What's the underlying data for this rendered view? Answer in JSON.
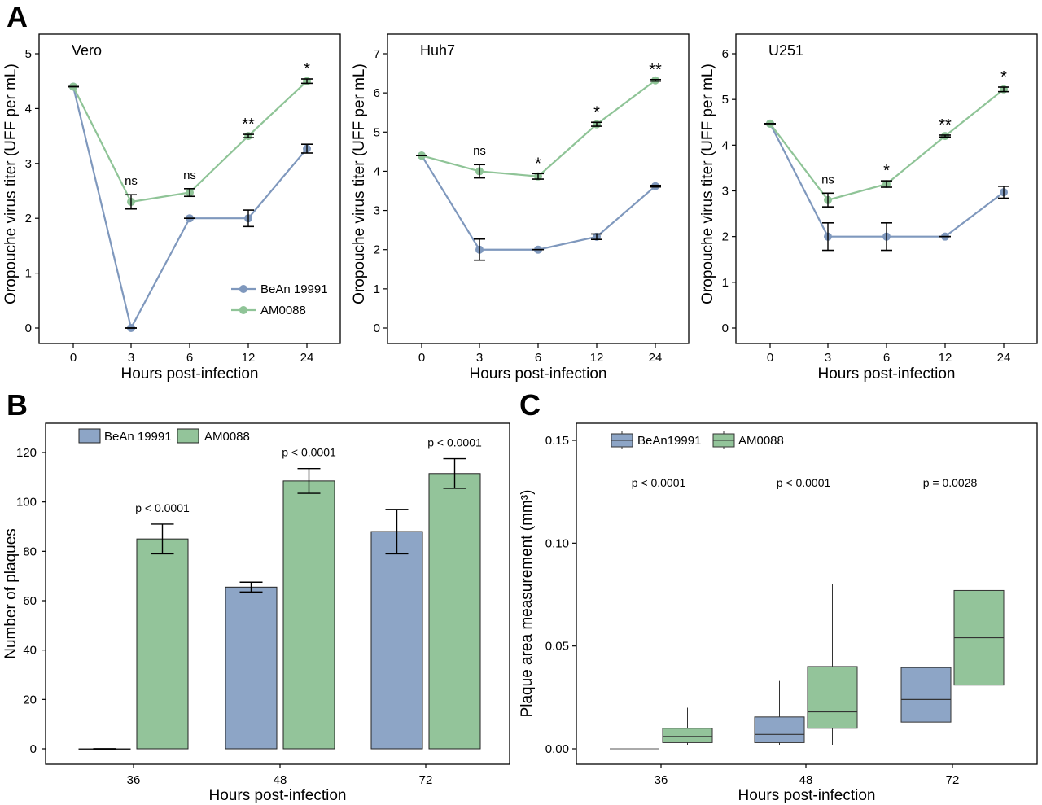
{
  "colors": {
    "blue": "#8DA5C6",
    "green": "#93C49A",
    "blue_line": "#7F98BD",
    "green_line": "#8FC497",
    "stroke": "#000000"
  },
  "panels": {
    "A": "A",
    "B": "B",
    "C": "C"
  },
  "chart_data": [
    {
      "id": "A1",
      "type": "line",
      "title": "Vero",
      "xlabel": "Hours post-infection",
      "ylabel": "Oropouche virus titer (UFF per mL)",
      "categories": [
        "0",
        "3",
        "6",
        "12",
        "24"
      ],
      "ylim": [
        0,
        5
      ],
      "yticks": [
        "0",
        "1",
        "2",
        "3",
        "4",
        "5"
      ],
      "series": [
        {
          "name": "BeAn 19991",
          "values": [
            4.4,
            0.0,
            2.0,
            2.0,
            3.27
          ],
          "err": [
            0,
            0,
            0,
            0.15,
            0.08
          ]
        },
        {
          "name": "AM0088",
          "values": [
            4.4,
            2.3,
            2.47,
            3.5,
            4.5
          ],
          "err": [
            0,
            0.13,
            0.07,
            0.03,
            0.04
          ]
        }
      ],
      "annotations": [
        "",
        "ns",
        "ns",
        "**",
        "*"
      ],
      "legend": "bottom-right",
      "grid": false
    },
    {
      "id": "A2",
      "type": "line",
      "title": "Huh7",
      "xlabel": "Hours post-infection",
      "ylabel": "Oropouche virus titer (UFF per mL)",
      "categories": [
        "0",
        "3",
        "6",
        "12",
        "24"
      ],
      "ylim": [
        0,
        7
      ],
      "yticks": [
        "0",
        "1",
        "2",
        "3",
        "4",
        "5",
        "6",
        "7"
      ],
      "series": [
        {
          "name": "BeAn 19991",
          "values": [
            4.4,
            2.0,
            2.0,
            2.33,
            3.62
          ],
          "err": [
            0,
            0.27,
            0,
            0.07,
            0.02
          ]
        },
        {
          "name": "AM0088",
          "values": [
            4.4,
            4.0,
            3.87,
            5.2,
            6.32
          ],
          "err": [
            0,
            0.17,
            0.07,
            0.05,
            0.02
          ]
        }
      ],
      "annotations": [
        "",
        "ns",
        "*",
        "*",
        "**"
      ],
      "grid": false
    },
    {
      "id": "A3",
      "type": "line",
      "title": "U251",
      "xlabel": "Hours post-infection",
      "ylabel": "Oropouche virus titer (UFF per mL)",
      "categories": [
        "0",
        "3",
        "6",
        "12",
        "24"
      ],
      "ylim": [
        0,
        6
      ],
      "yticks": [
        "0",
        "1",
        "2",
        "3",
        "4",
        "5",
        "6"
      ],
      "series": [
        {
          "name": "BeAn 19991",
          "values": [
            4.47,
            2.0,
            2.0,
            2.0,
            2.97
          ],
          "err": [
            0,
            0.3,
            0.3,
            0,
            0.13
          ]
        },
        {
          "name": "AM0088",
          "values": [
            4.47,
            2.8,
            3.15,
            4.2,
            5.22
          ],
          "err": [
            0,
            0.15,
            0.07,
            0.02,
            0.05
          ]
        }
      ],
      "annotations": [
        "",
        "ns",
        "*",
        "**",
        "*"
      ],
      "grid": false
    },
    {
      "id": "B",
      "type": "bar",
      "xlabel": "Hours post-infection",
      "ylabel": "Number of plaques",
      "categories": [
        "36",
        "48",
        "72"
      ],
      "ylim": [
        0,
        120
      ],
      "yticks": [
        "0",
        "20",
        "40",
        "60",
        "80",
        "100",
        "120"
      ],
      "series": [
        {
          "name": "BeAn 19991",
          "values": [
            0,
            65.5,
            88
          ],
          "err": [
            0,
            2,
            9
          ]
        },
        {
          "name": "AM0088",
          "values": [
            85,
            108.5,
            111.5
          ],
          "err": [
            6,
            5,
            6
          ]
        }
      ],
      "annotations": [
        "p < 0.0001",
        "p < 0.0001",
        "p < 0.0001"
      ],
      "legend": "top-left",
      "grid": false
    },
    {
      "id": "C",
      "type": "box",
      "xlabel": "Hours post-infection",
      "ylabel": "Plaque area measurement (mm³)",
      "categories": [
        "36",
        "48",
        "72"
      ],
      "ylim": [
        0,
        0.15
      ],
      "yticks": [
        "0.00",
        "0.05",
        "0.10",
        "0.15"
      ],
      "series": [
        {
          "name": "BeAn19991",
          "boxes": [
            {
              "min": 0,
              "q1": 0,
              "median": 0,
              "q3": 0,
              "max": 0
            },
            {
              "min": 0.002,
              "q1": 0.003,
              "median": 0.007,
              "q3": 0.0155,
              "max": 0.033
            },
            {
              "min": 0.002,
              "q1": 0.013,
              "median": 0.024,
              "q3": 0.0395,
              "max": 0.077
            }
          ]
        },
        {
          "name": "AM0088",
          "boxes": [
            {
              "min": 0.002,
              "q1": 0.003,
              "median": 0.006,
              "q3": 0.01,
              "max": 0.02
            },
            {
              "min": 0.002,
              "q1": 0.01,
              "median": 0.018,
              "q3": 0.04,
              "max": 0.08
            },
            {
              "min": 0.011,
              "q1": 0.031,
              "median": 0.054,
              "q3": 0.077,
              "max": 0.137
            }
          ]
        }
      ],
      "annotations": [
        "p < 0.0001",
        "p < 0.0001",
        "p = 0.0028"
      ],
      "legend": "top-left",
      "grid": false
    }
  ]
}
